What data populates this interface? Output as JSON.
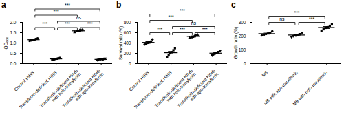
{
  "chart_data": [
    {
      "type": "scatter",
      "title": "a",
      "ylabel": "OD₆₀₀",
      "color": "#000000",
      "categories": [
        "Control HIHS",
        "Transferrin-deficient HIHS",
        "Transferrin-deficient HIHS with holo-transferrin",
        "Transferrin-deficient HIHS with apo-transferrin"
      ],
      "marker": [
        "circle",
        "square",
        "triangle",
        "triangle_down"
      ],
      "values": [
        [
          1.1,
          1.13,
          1.15,
          1.17,
          1.2,
          1.22
        ],
        [
          0.18,
          0.2,
          0.22,
          0.24,
          0.26,
          0.28
        ],
        [
          1.52,
          1.56,
          1.58,
          1.6,
          1.62,
          1.65
        ],
        [
          0.17,
          0.19,
          0.2,
          0.21,
          0.22,
          0.24
        ]
      ],
      "means": [
        1.16,
        0.23,
        1.59,
        0.205
      ],
      "errors": [
        0.02,
        0.015,
        0.02,
        0.01
      ],
      "ylim": [
        0,
        2
      ],
      "yticks": [
        {
          "value": 0,
          "label": "0.0"
        },
        {
          "value": 0.5,
          "label": "0.5"
        },
        {
          "value": 1,
          "label": "1.0"
        },
        {
          "value": 1.5,
          "label": "1.5"
        },
        {
          "value": 2,
          "label": "2.0"
        }
      ],
      "annotations": [
        {
          "between": [
            "Control HIHS",
            "Transferrin-deficient HIHS"
          ],
          "label": "***"
        },
        {
          "between": [
            "Transferrin-deficient HIHS",
            "Transferrin-deficient HIHS with holo-transferrin"
          ],
          "label": "***"
        },
        {
          "between": [
            "Transferrin-deficient HIHS with holo-transferrin",
            "Transferrin-deficient HIHS with apo-transferrin"
          ],
          "label": "***"
        },
        {
          "between": [
            "Transferrin-deficient HIHS",
            "Transferrin-deficient HIHS with apo-transferrin"
          ],
          "label": "ns"
        },
        {
          "between": [
            "Control HIHS",
            "Transferrin-deficient HIHS with holo-transferrin"
          ],
          "label": "***"
        },
        {
          "between": [
            "Control HIHS",
            "Transferrin-deficient HIHS with apo-transferrin"
          ],
          "label": "***"
        }
      ]
    },
    {
      "type": "scatter",
      "title": "b",
      "ylabel": "Survival ratio (%)",
      "color": "#000000",
      "categories": [
        "Control HIHS",
        "Transferrin-deficient HIHS",
        "Transferrin-deficient HIHS with holo-transferrin",
        "Transferrin-deficient HIHS with apo-transferrin"
      ],
      "marker": [
        "circle",
        "square",
        "triangle",
        "triangle_down"
      ],
      "values": [
        [
          370,
          385,
          400,
          410,
          430,
          470
        ],
        [
          130,
          160,
          200,
          220,
          260,
          300
        ],
        [
          500,
          510,
          520,
          530,
          550,
          560
        ],
        [
          160,
          180,
          195,
          210,
          225,
          250
        ]
      ],
      "means": [
        411,
        212,
        528,
        203
      ],
      "errors": [
        15,
        25,
        9,
        13
      ],
      "ylim": [
        0,
        800
      ],
      "yticks": [
        0,
        200,
        400,
        600,
        800
      ],
      "annotations": [
        {
          "between": [
            "Control HIHS",
            "Transferrin-deficient HIHS"
          ],
          "label": "***"
        },
        {
          "between": [
            "Transferrin-deficient HIHS",
            "Transferrin-deficient HIHS with holo-transferrin"
          ],
          "label": "***"
        },
        {
          "between": [
            "Transferrin-deficient HIHS with holo-transferrin",
            "Transferrin-deficient HIHS with apo-transferrin"
          ],
          "label": "***"
        },
        {
          "between": [
            "Transferrin-deficient HIHS",
            "Transferrin-deficient HIHS with apo-transferrin"
          ],
          "label": "ns"
        },
        {
          "between": [
            "Control HIHS",
            "Transferrin-deficient HIHS with holo-transferrin"
          ],
          "label": "***"
        },
        {
          "between": [
            "Control HIHS",
            "Transferrin-deficient HIHS with apo-transferrin"
          ],
          "label": "***"
        }
      ]
    },
    {
      "type": "scatter",
      "title": "c",
      "ylabel": "Growth ratio (%)",
      "color": "#000000",
      "categories": [
        "M9",
        "M9 with apo-transferrin",
        "M9 with holo-transferrin"
      ],
      "marker": [
        "circle",
        "triangle_down",
        "square"
      ],
      "values": [
        [
          205,
          210,
          215,
          220,
          225,
          235
        ],
        [
          192,
          200,
          205,
          210,
          215,
          225
        ],
        [
          240,
          250,
          260,
          265,
          275,
          285
        ]
      ],
      "means": [
        218,
        208,
        262.5
      ],
      "errors": [
        4,
        5,
        7
      ],
      "ylim": [
        0,
        300
      ],
      "yticks": [
        0,
        100,
        200,
        300
      ],
      "annotations": [
        {
          "between": [
            "M9",
            "M9 with apo-transferrin"
          ],
          "label": "ns"
        },
        {
          "between": [
            "M9 with apo-transferrin",
            "M9 with holo-transferrin"
          ],
          "label": "***"
        },
        {
          "between": [
            "M9",
            "M9 with holo-transferrin"
          ],
          "label": "***"
        }
      ]
    }
  ]
}
